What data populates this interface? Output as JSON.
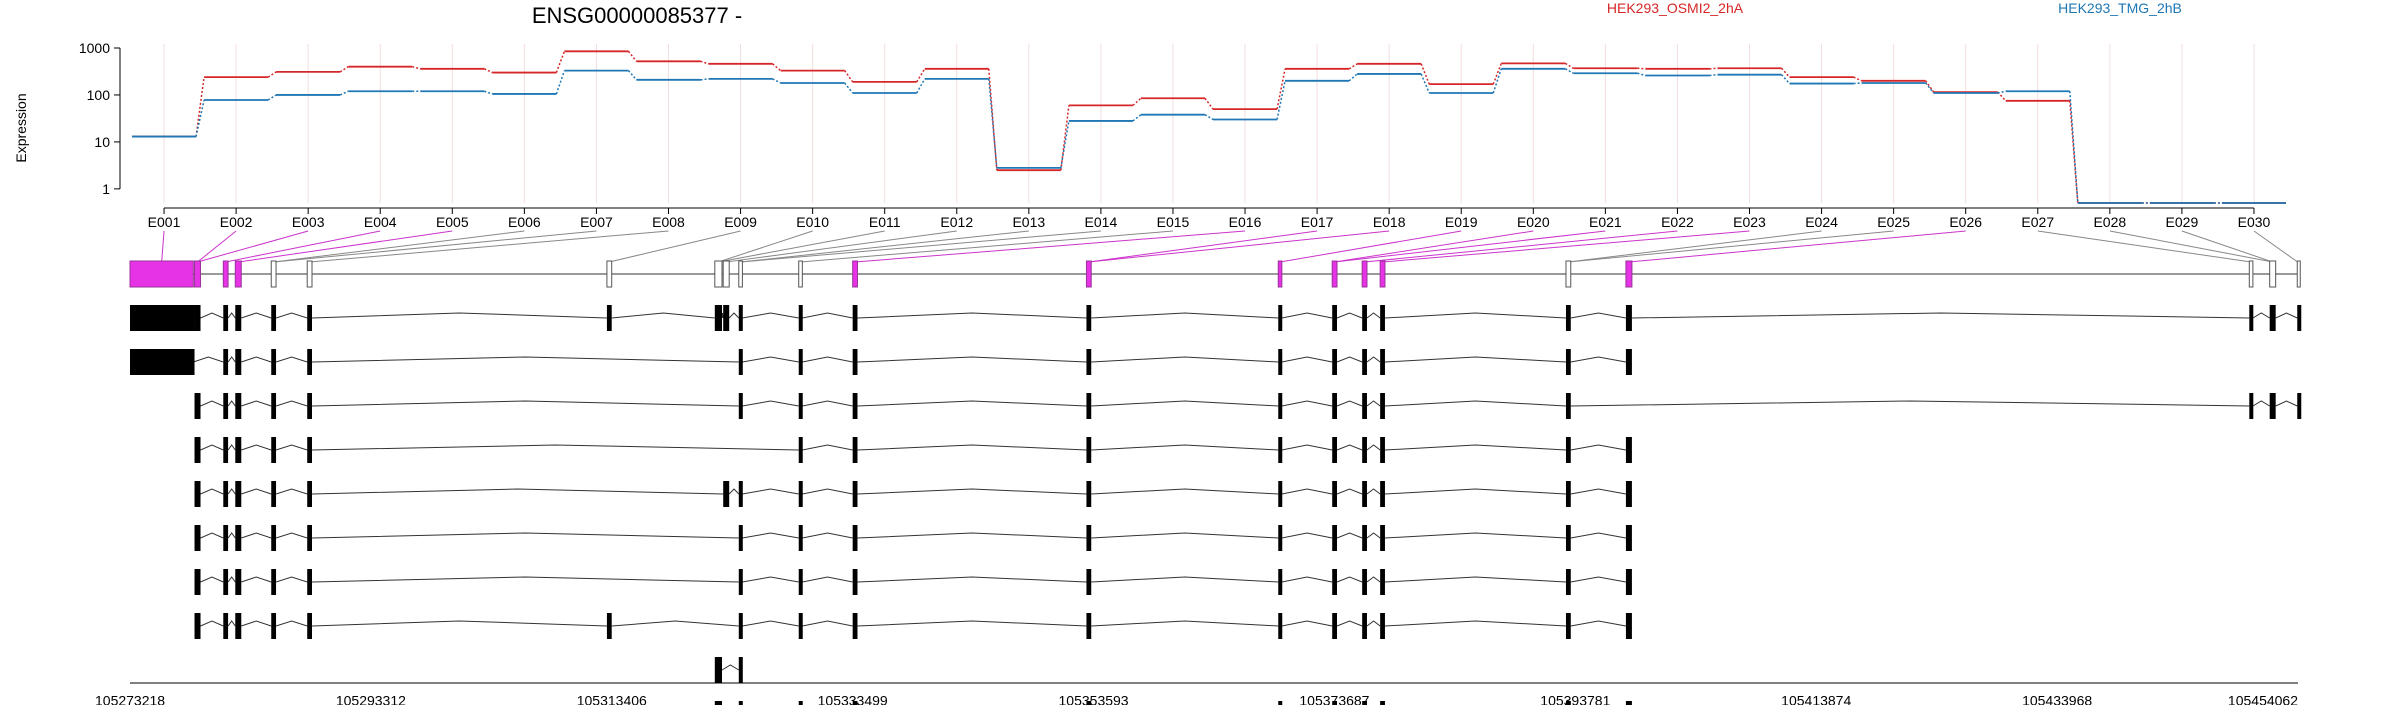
{
  "chart_data": {
    "type": "line",
    "title": "ENSG00000085377 -",
    "xlabel": "",
    "ylabel": "Expression",
    "y_scale": "log",
    "ylim": [
      0.5,
      1000
    ],
    "y_ticks": [
      "1000",
      "100",
      "10",
      "1"
    ],
    "y_tick_values": [
      1000,
      100,
      10,
      1
    ],
    "grid": "vertical",
    "legend_position": "top-right",
    "categories": [
      "E001",
      "E002",
      "E003",
      "E004",
      "E005",
      "E006",
      "E007",
      "E008",
      "E009",
      "E010",
      "E011",
      "E012",
      "E013",
      "E014",
      "E015",
      "E016",
      "E017",
      "E018",
      "E019",
      "E020",
      "E021",
      "E022",
      "E023",
      "E024",
      "E025",
      "E026",
      "E027",
      "E028",
      "E029",
      "E030"
    ],
    "series": [
      {
        "name": "HEK293_OSMI2_2hA",
        "color": "#d62728",
        "values": [
          13,
          240,
          310,
          400,
          360,
          300,
          850,
          520,
          460,
          330,
          190,
          360,
          2.5,
          60,
          85,
          50,
          360,
          460,
          170,
          470,
          370,
          360,
          370,
          240,
          200,
          115,
          75,
          0.5,
          0.5,
          0.5
        ]
      },
      {
        "name": "HEK293_TMG_2hB",
        "color": "#1f77b4",
        "values": [
          13,
          78,
          100,
          120,
          120,
          105,
          330,
          210,
          220,
          180,
          110,
          220,
          2.8,
          28,
          38,
          30,
          200,
          280,
          110,
          360,
          290,
          260,
          270,
          175,
          180,
          110,
          120,
          0.5,
          0.5,
          0.5
        ]
      }
    ],
    "genomic_axis": {
      "ticks": [
        "105273218",
        "105293312",
        "105313406",
        "105333499",
        "105353593",
        "105373687",
        "105393781",
        "105413874",
        "105433968",
        "105454062"
      ],
      "range": [
        105273218,
        105454062
      ]
    },
    "exon_positions": [
      [
        105273218,
        105278500
      ],
      [
        105278600,
        105279100
      ],
      [
        105281000,
        105281400
      ],
      [
        105282000,
        105282500
      ],
      [
        105285000,
        105285400
      ],
      [
        105288000,
        105288400
      ],
      [
        105313000,
        105313400
      ],
      [
        105322000,
        105322600
      ],
      [
        105322700,
        105323200
      ],
      [
        105324000,
        105324300
      ],
      [
        105329000,
        105329300
      ],
      [
        105333500,
        105333900
      ],
      [
        105353000,
        105353400
      ],
      [
        105369000,
        105369300
      ],
      [
        105373500,
        105373900
      ],
      [
        105376000,
        105376400
      ],
      [
        105377500,
        105377900
      ],
      [
        105393000,
        105393400
      ],
      [
        105398000,
        105398500
      ],
      [
        105450000,
        105450300
      ],
      [
        105451700,
        105452200
      ],
      [
        105454000,
        105454062
      ]
    ],
    "highlighted_exons": [
      0,
      1,
      2,
      3,
      11,
      12,
      13,
      14,
      15,
      16,
      18
    ],
    "transcripts": [
      [
        0,
        1,
        2,
        3,
        4,
        5,
        6,
        7,
        8,
        9,
        10,
        11,
        12,
        13,
        14,
        15,
        16,
        17,
        18,
        19,
        20,
        21
      ],
      [
        0,
        2,
        3,
        4,
        5,
        9,
        10,
        11,
        12,
        13,
        14,
        15,
        16,
        17,
        18
      ],
      [
        1,
        2,
        3,
        4,
        5,
        9,
        10,
        11,
        12,
        13,
        14,
        15,
        16,
        17,
        19,
        20,
        21
      ],
      [
        1,
        2,
        3,
        4,
        5,
        10,
        11,
        12,
        13,
        14,
        15,
        16,
        17,
        18
      ],
      [
        1,
        2,
        3,
        4,
        5,
        8,
        9,
        10,
        11,
        12,
        13,
        14,
        15,
        16,
        17,
        18
      ],
      [
        1,
        2,
        3,
        4,
        5,
        9,
        10,
        11,
        12,
        13,
        14,
        15,
        16,
        17,
        18
      ],
      [
        1,
        2,
        3,
        4,
        5,
        9,
        10,
        11,
        12,
        13,
        14,
        15,
        16,
        17,
        18
      ],
      [
        1,
        2,
        3,
        4,
        5,
        6,
        9,
        10,
        11,
        12,
        13,
        14,
        15,
        16,
        17,
        18
      ],
      [
        7,
        9
      ],
      [
        7,
        9,
        10,
        11,
        12,
        13,
        14,
        15,
        16,
        17,
        18
      ]
    ]
  }
}
